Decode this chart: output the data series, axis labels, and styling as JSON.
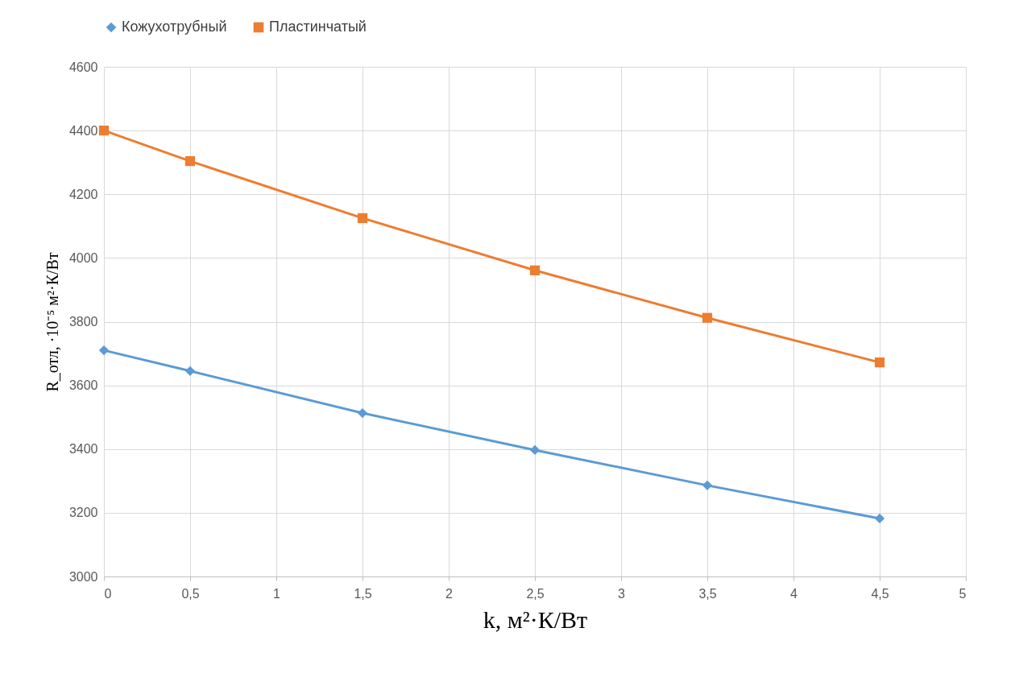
{
  "chart_data": {
    "type": "line",
    "xlabel": "k, м²·К/Вт",
    "ylabel": "R_отл, ·10⁻⁵ м²·К/Вт",
    "x": [
      0,
      0.5,
      1.5,
      2.5,
      3.5,
      4.5
    ],
    "series": [
      {
        "name": "Кожухотрубный",
        "color": "#5b9bd5",
        "marker": "diamond",
        "values": [
          3710,
          3645,
          3513,
          3397,
          3286,
          3182
        ]
      },
      {
        "name": "Пластинчатый",
        "color": "#ed7d31",
        "marker": "square",
        "values": [
          4400,
          4304,
          4125,
          3961,
          3812,
          3672
        ]
      }
    ],
    "xlim": [
      0,
      5
    ],
    "xticks": [
      0,
      {
        "value": 0.5,
        "label": "0,5"
      },
      1,
      {
        "value": 1.5,
        "label": "1,5"
      },
      2,
      {
        "value": 2.5,
        "label": "2,5"
      },
      3,
      {
        "value": 3.5,
        "label": "3,5"
      },
      4,
      {
        "value": 4.5,
        "label": "4,5"
      },
      5
    ],
    "ylim": [
      3000,
      4600
    ],
    "yticks": [
      3000,
      3200,
      3400,
      3600,
      3800,
      4000,
      4200,
      4400,
      4600
    ],
    "grid": true,
    "legend": "top",
    "line_style": "solid"
  }
}
